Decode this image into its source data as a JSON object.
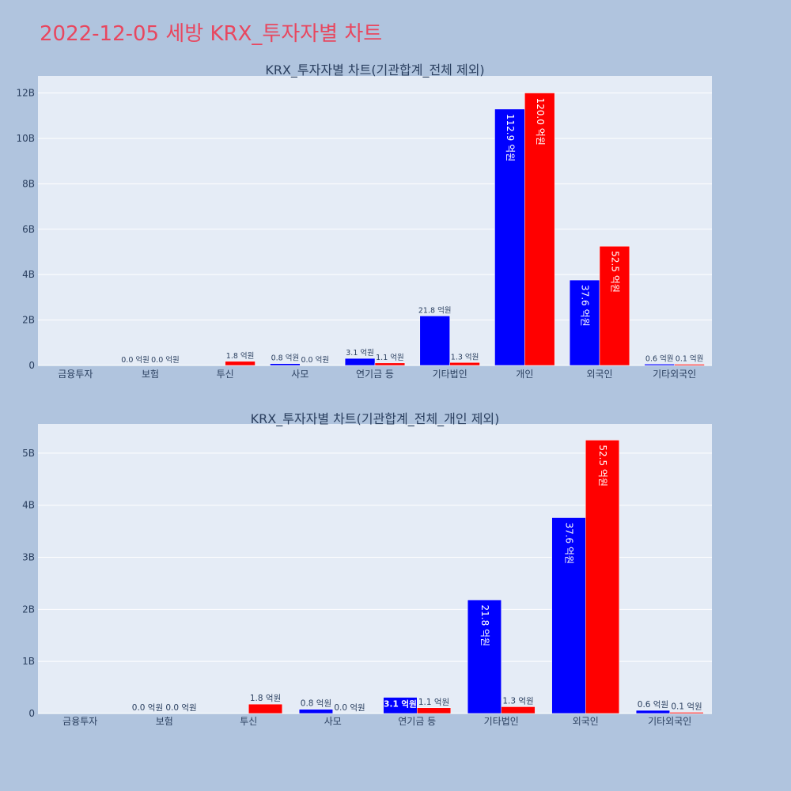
{
  "page_title": "2022-12-05 세방 KRX_투자자별 차트",
  "colors": {
    "buy": "#0000ff",
    "sell": "#ff0000",
    "plot_bg": "#e5ecf6",
    "paper_bg": "#b0c4de",
    "title": "#e8475f"
  },
  "chart_data": [
    {
      "type": "bar",
      "title": "KRX_투자자별 차트(기관합계_전체 제외)",
      "categories": [
        "금융투자",
        "보험",
        "투신",
        "사모",
        "연기금 등",
        "기타법인",
        "개인",
        "외국인",
        "기타외국인"
      ],
      "series": [
        {
          "values": [
            0,
            0,
            0,
            80000000,
            310000000,
            2180000000,
            11290000000,
            3760000000,
            60000000
          ]
        },
        {
          "values": [
            0,
            0,
            180000000,
            0,
            110000000,
            130000000,
            12000000000,
            5250000000,
            10000000
          ]
        }
      ],
      "bar_labels": [
        [
          "",
          "0.0 억원",
          "",
          "0.8 억원",
          "3.1 억원",
          "21.8 억원",
          "112.9 억원",
          "37.6 억원",
          "0.6 억원"
        ],
        [
          "",
          "0.0 억원",
          "1.8 억원",
          "0.0 억원",
          "1.1 억원",
          "1.3 억원",
          "120.0 억원",
          "52.5 억원",
          "0.1 억원"
        ]
      ],
      "yticks": [
        "0",
        "2B",
        "4B",
        "6B",
        "8B",
        "10B",
        "12B"
      ],
      "ytick_values": [
        0,
        2000000000,
        4000000000,
        6000000000,
        8000000000,
        10000000000,
        12000000000
      ],
      "ylim": [
        0,
        12750000000
      ],
      "grid": true
    },
    {
      "type": "bar",
      "title": "KRX_투자자별 차트(기관합계_전체_개인 제외)",
      "categories": [
        "금융투자",
        "보험",
        "투신",
        "사모",
        "연기금 등",
        "기타법인",
        "외국인",
        "기타외국인"
      ],
      "series": [
        {
          "values": [
            0,
            0,
            0,
            80000000,
            310000000,
            2180000000,
            3760000000,
            60000000
          ]
        },
        {
          "values": [
            0,
            0,
            180000000,
            0,
            110000000,
            130000000,
            5250000000,
            10000000
          ]
        }
      ],
      "bar_labels": [
        [
          "",
          "0.0 억원",
          "",
          "0.8 억원",
          "3.1 억원",
          "21.8 억원",
          "37.6 억원",
          "0.6 억원"
        ],
        [
          "",
          "0.0 억원",
          "1.8 억원",
          "0.0 억원",
          "1.1 억원",
          "1.3 억원",
          "52.5 억원",
          "0.1 억원"
        ]
      ],
      "yticks": [
        "0",
        "1B",
        "2B",
        "3B",
        "4B",
        "5B"
      ],
      "ytick_values": [
        0,
        1000000000,
        2000000000,
        3000000000,
        4000000000,
        5000000000
      ],
      "ylim": [
        0,
        5560000000
      ],
      "grid": true
    }
  ]
}
